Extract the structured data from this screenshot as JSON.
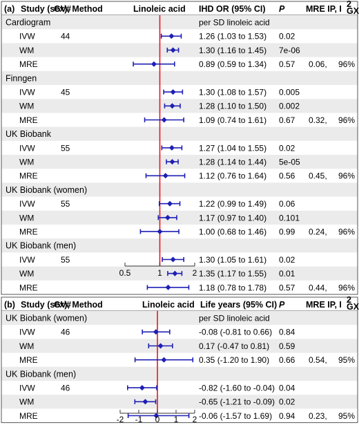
{
  "chart_data": [
    {
      "type": "forest",
      "panel_label": "(a)",
      "headers": {
        "study": "Study (sex), Method",
        "gv": "GV#",
        "exposure": "Linoleic acid",
        "estimate": "IHD OR (95% CI)",
        "p": "P",
        "mre": "MRE IP, I",
        "mre_sup": "2",
        "mre_sub": "GX"
      },
      "unit_note": "per SD linoleic acid",
      "x_ticks": [
        "0.5",
        "1",
        "2"
      ],
      "x_tick_values": [
        0.5,
        1,
        2
      ],
      "xlim": [
        0.5,
        2
      ],
      "x_scale": "log",
      "reference_line": 1,
      "groups": [
        {
          "name": "Cardiogram",
          "gv": "44",
          "rows": [
            {
              "method": "IVW",
              "est": 1.26,
              "lo": 1.03,
              "hi": 1.53,
              "text": "1.26 (1.03 to 1.53)",
              "p": "0.02",
              "mre_ip": "",
              "i2": ""
            },
            {
              "method": "WM",
              "est": 1.3,
              "lo": 1.16,
              "hi": 1.45,
              "text": "1.30 (1.16 to 1.45)",
              "p": "7e-06",
              "mre_ip": "",
              "i2": ""
            },
            {
              "method": "MRE",
              "est": 0.89,
              "lo": 0.59,
              "hi": 1.34,
              "text": "0.89 (0.59 to 1.34)",
              "p": "0.57",
              "mre_ip": "0.06,",
              "i2": "96%"
            }
          ]
        },
        {
          "name": "Finngen",
          "gv": "45",
          "rows": [
            {
              "method": "IVW",
              "est": 1.3,
              "lo": 1.08,
              "hi": 1.57,
              "text": "1.30 (1.08 to 1.57)",
              "p": "0.005",
              "mre_ip": "",
              "i2": ""
            },
            {
              "method": "WM",
              "est": 1.28,
              "lo": 1.1,
              "hi": 1.5,
              "text": "1.28 (1.10 to 1.50)",
              "p": "0.002",
              "mre_ip": "",
              "i2": ""
            },
            {
              "method": "MRE",
              "est": 1.09,
              "lo": 0.74,
              "hi": 1.61,
              "text": "1.09 (0.74 to 1.61)",
              "p": "0.67",
              "mre_ip": "0.32,",
              "i2": "96%"
            }
          ]
        },
        {
          "name": "UK Biobank",
          "gv": "55",
          "rows": [
            {
              "method": "IVW",
              "est": 1.27,
              "lo": 1.04,
              "hi": 1.55,
              "text": "1.27 (1.04 to 1.55)",
              "p": "0.02",
              "mre_ip": "",
              "i2": ""
            },
            {
              "method": "WM",
              "est": 1.28,
              "lo": 1.14,
              "hi": 1.44,
              "text": "1.28 (1.14 to 1.44)",
              "p": "5e-05",
              "mre_ip": "",
              "i2": ""
            },
            {
              "method": "MRE",
              "est": 1.12,
              "lo": 0.76,
              "hi": 1.64,
              "text": "1.12 (0.76 to 1.64)",
              "p": "0.56",
              "mre_ip": "0.45,",
              "i2": "96%"
            }
          ]
        },
        {
          "name": "UK Biobank (women)",
          "gv": "55",
          "rows": [
            {
              "method": "IVW",
              "est": 1.22,
              "lo": 0.99,
              "hi": 1.49,
              "text": "1.22 (0.99 to 1.49)",
              "p": "0.06",
              "mre_ip": "",
              "i2": ""
            },
            {
              "method": "WM",
              "est": 1.17,
              "lo": 0.97,
              "hi": 1.4,
              "text": "1.17 (0.97 to 1.40)",
              "p": "0.101",
              "mre_ip": "",
              "i2": ""
            },
            {
              "method": "MRE",
              "est": 1.0,
              "lo": 0.68,
              "hi": 1.46,
              "text": "1.00 (0.68 to 1.46)",
              "p": "0.99",
              "mre_ip": "0.24,",
              "i2": "96%"
            }
          ]
        },
        {
          "name": "UK Biobank (men)",
          "gv": "55",
          "rows": [
            {
              "method": "IVW",
              "est": 1.3,
              "lo": 1.05,
              "hi": 1.61,
              "text": "1.30 (1.05 to 1.61)",
              "p": "0.02",
              "mre_ip": "",
              "i2": ""
            },
            {
              "method": "WM",
              "est": 1.35,
              "lo": 1.17,
              "hi": 1.55,
              "text": "1.35 (1.17 to 1.55)",
              "p": "0.01",
              "mre_ip": "",
              "i2": ""
            },
            {
              "method": "MRE",
              "est": 1.18,
              "lo": 0.78,
              "hi": 1.78,
              "text": "1.18 (0.78 to 1.78)",
              "p": "0.57",
              "mre_ip": "0.44,",
              "i2": "96%"
            }
          ]
        }
      ]
    },
    {
      "type": "forest",
      "panel_label": "(b)",
      "headers": {
        "study": "Study (sex), Method",
        "gv": "GV#",
        "exposure": "Linoleic acid",
        "estimate": "Life years (95% CI)",
        "p": "P",
        "mre": "MRE IP, I",
        "mre_sup": "2",
        "mre_sub": "GX"
      },
      "unit_note": "per SD linoleic acid",
      "x_ticks": [
        "-2",
        "-1",
        "0",
        "1",
        "2"
      ],
      "x_tick_values": [
        -2,
        -1,
        0,
        1,
        2
      ],
      "xlim": [
        -2,
        2
      ],
      "x_scale": "linear",
      "reference_line": 0,
      "groups": [
        {
          "name": "UK Biobank (women)",
          "gv": "46",
          "rows": [
            {
              "method": "IVW",
              "est": -0.08,
              "lo": -0.81,
              "hi": 0.66,
              "text": "-0.08 (-0.81 to 0.66)",
              "p": "0.84",
              "mre_ip": "",
              "i2": ""
            },
            {
              "method": "WM",
              "est": 0.17,
              "lo": -0.47,
              "hi": 0.81,
              "text": "0.17 (-0.47 to 0.81)",
              "p": "0.59",
              "mre_ip": "",
              "i2": ""
            },
            {
              "method": "MRE",
              "est": 0.35,
              "lo": -1.2,
              "hi": 1.9,
              "text": "0.35 (-1.20 to 1.90)",
              "p": "0.66",
              "mre_ip": "0.54,",
              "i2": "95%"
            }
          ]
        },
        {
          "name": "UK Biobank (men)",
          "gv": "46",
          "rows": [
            {
              "method": "IVW",
              "est": -0.82,
              "lo": -1.6,
              "hi": -0.04,
              "text": "-0.82 (-1.60 to -0.04)",
              "p": "0.04",
              "mre_ip": "",
              "i2": ""
            },
            {
              "method": "WM",
              "est": -0.65,
              "lo": -1.21,
              "hi": -0.09,
              "text": "-0.65 (-1.21 to -0.09)",
              "p": "0.02",
              "mre_ip": "",
              "i2": ""
            },
            {
              "method": "MRE",
              "est": -0.06,
              "lo": -1.57,
              "hi": 1.69,
              "text": "-0.06 (-1.57 to 1.69)",
              "p": "0.94",
              "mre_ip": "0.23,",
              "i2": "95%"
            }
          ]
        }
      ]
    }
  ],
  "colors": {
    "estimate": "#1f1fb4",
    "reference_line": "#e8151b",
    "row_band": "#ebebeb",
    "border": "#555555"
  }
}
